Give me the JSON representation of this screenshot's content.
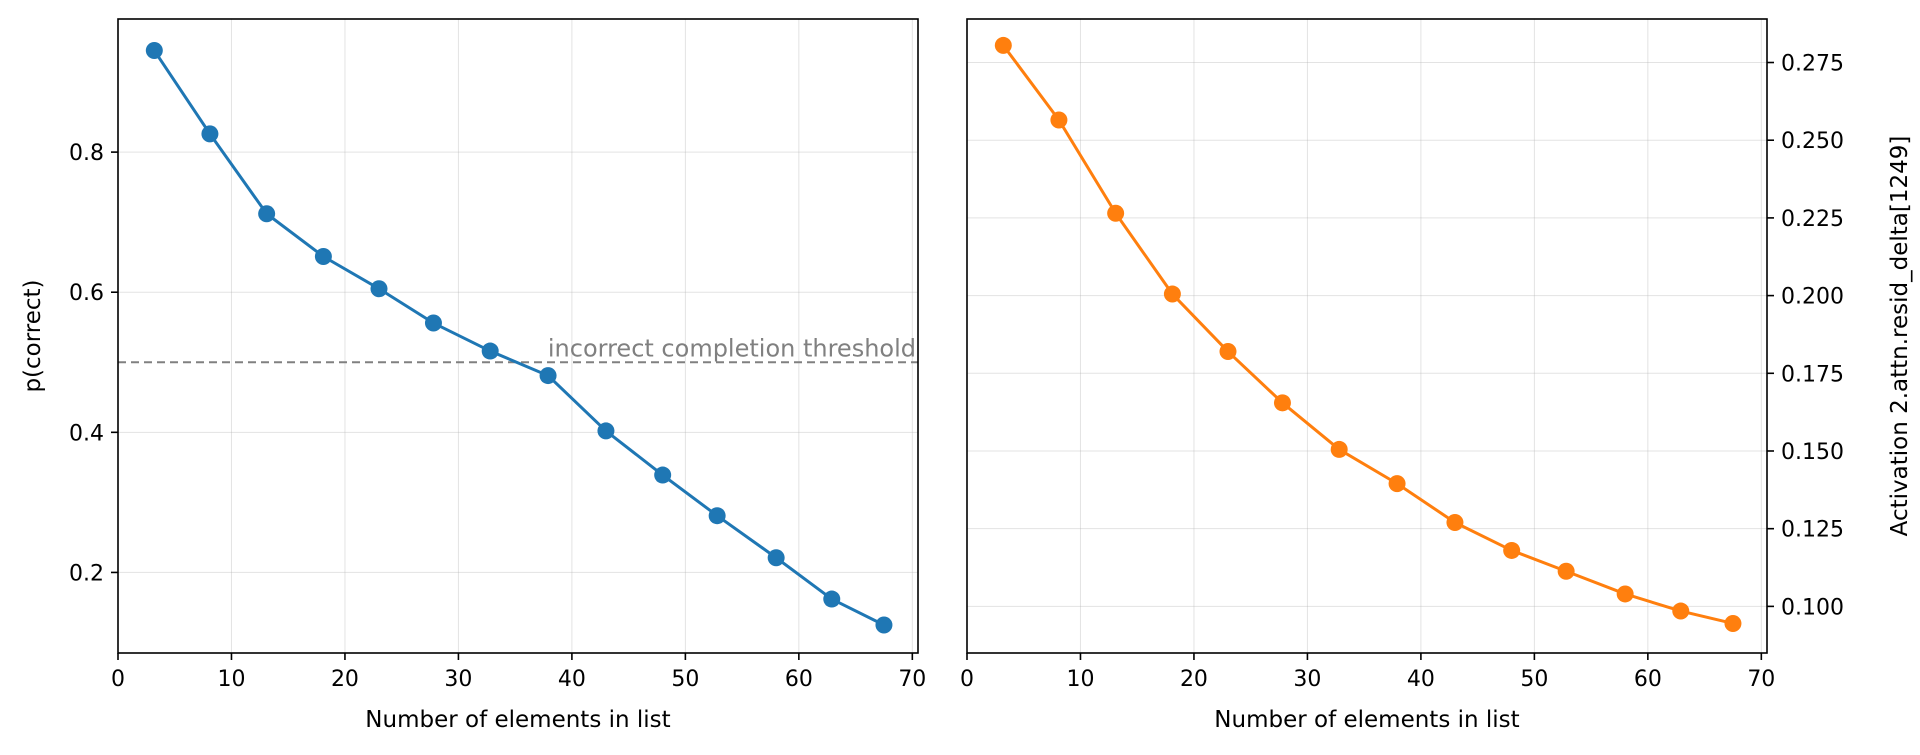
{
  "chart_data": [
    {
      "type": "line",
      "xlabel": "Number of elements in list",
      "ylabel": "p(correct)",
      "xlim": [
        0,
        70.5
      ],
      "ylim": [
        0.085,
        0.99
      ],
      "xticks": [
        0,
        10,
        20,
        30,
        40,
        50,
        60,
        70
      ],
      "yticks": [
        0.2,
        0.4,
        0.6,
        0.8
      ],
      "ytick_labels": [
        "0.2",
        "0.4",
        "0.6",
        "0.8"
      ],
      "yaxis_side": "left",
      "grid": true,
      "color": "#1f77b4",
      "x": [
        3.2,
        8.1,
        13.1,
        18.1,
        23.0,
        27.8,
        32.8,
        37.9,
        43.0,
        48.0,
        52.8,
        58.0,
        62.9,
        67.5
      ],
      "y": [
        0.945,
        0.826,
        0.712,
        0.651,
        0.605,
        0.556,
        0.516,
        0.481,
        0.402,
        0.339,
        0.281,
        0.221,
        0.162,
        0.125
      ],
      "hline": {
        "y": 0.5,
        "color": "#808080",
        "style": "dashed",
        "label": "incorrect completion threshold"
      }
    },
    {
      "type": "line",
      "xlabel": "Number of elements in list",
      "ylabel": "Activation 2.attn.resid_delta[1249]",
      "xlim": [
        0,
        70.5
      ],
      "ylim": [
        0.085,
        0.289
      ],
      "xticks": [
        0,
        10,
        20,
        30,
        40,
        50,
        60,
        70
      ],
      "yticks": [
        0.1,
        0.125,
        0.15,
        0.175,
        0.2,
        0.225,
        0.25,
        0.275
      ],
      "ytick_labels": [
        "0.100",
        "0.125",
        "0.150",
        "0.175",
        "0.200",
        "0.225",
        "0.250",
        "0.275"
      ],
      "yaxis_side": "right",
      "grid": true,
      "color": "#ff7f0e",
      "x": [
        3.2,
        8.1,
        13.1,
        18.1,
        23.0,
        27.8,
        32.8,
        37.9,
        43.0,
        48.0,
        52.8,
        58.0,
        62.9,
        67.5
      ],
      "y": [
        0.2805,
        0.2565,
        0.2265,
        0.2005,
        0.182,
        0.1655,
        0.1505,
        0.1395,
        0.127,
        0.118,
        0.1113,
        0.104,
        0.0985,
        0.0945
      ]
    }
  ]
}
